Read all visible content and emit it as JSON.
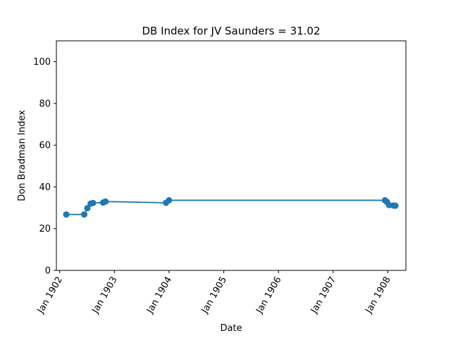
{
  "chart_data": {
    "type": "line",
    "title": "DB Index for JV Saunders = 31.02",
    "xlabel": "Date",
    "ylabel": "Don Bradman Index",
    "ylim": [
      0,
      110
    ],
    "xlim": [
      "1901-12-10",
      "1908-05-01"
    ],
    "yticks": [
      0,
      20,
      40,
      60,
      80,
      100
    ],
    "xticks": [
      {
        "date": "1902-01-01",
        "label": "Jan 1902"
      },
      {
        "date": "1903-01-01",
        "label": "Jan 1903"
      },
      {
        "date": "1904-01-01",
        "label": "Jan 1904"
      },
      {
        "date": "1905-01-01",
        "label": "Jan 1905"
      },
      {
        "date": "1906-01-01",
        "label": "Jan 1906"
      },
      {
        "date": "1907-01-01",
        "label": "Jan 1907"
      },
      {
        "date": "1908-01-01",
        "label": "Jan 1908"
      }
    ],
    "grid": false,
    "legend": "none",
    "series": [
      {
        "color": "#1f77b4",
        "points": [
          {
            "x": "1902-02-14",
            "y": 26.8
          },
          {
            "x": "1902-06-14",
            "y": 26.8
          },
          {
            "x": "1902-07-05",
            "y": 29.8
          },
          {
            "x": "1902-07-27",
            "y": 32.0
          },
          {
            "x": "1902-08-12",
            "y": 32.3
          },
          {
            "x": "1902-10-18",
            "y": 32.5
          },
          {
            "x": "1902-11-03",
            "y": 33.0
          },
          {
            "x": "1903-12-12",
            "y": 32.4
          },
          {
            "x": "1904-01-01",
            "y": 33.6
          },
          {
            "x": "1907-12-13",
            "y": 33.6
          },
          {
            "x": "1907-12-27",
            "y": 32.8
          },
          {
            "x": "1908-01-10",
            "y": 31.3
          },
          {
            "x": "1908-02-07",
            "y": 31.1
          },
          {
            "x": "1908-02-21",
            "y": 31.02
          }
        ]
      }
    ]
  }
}
